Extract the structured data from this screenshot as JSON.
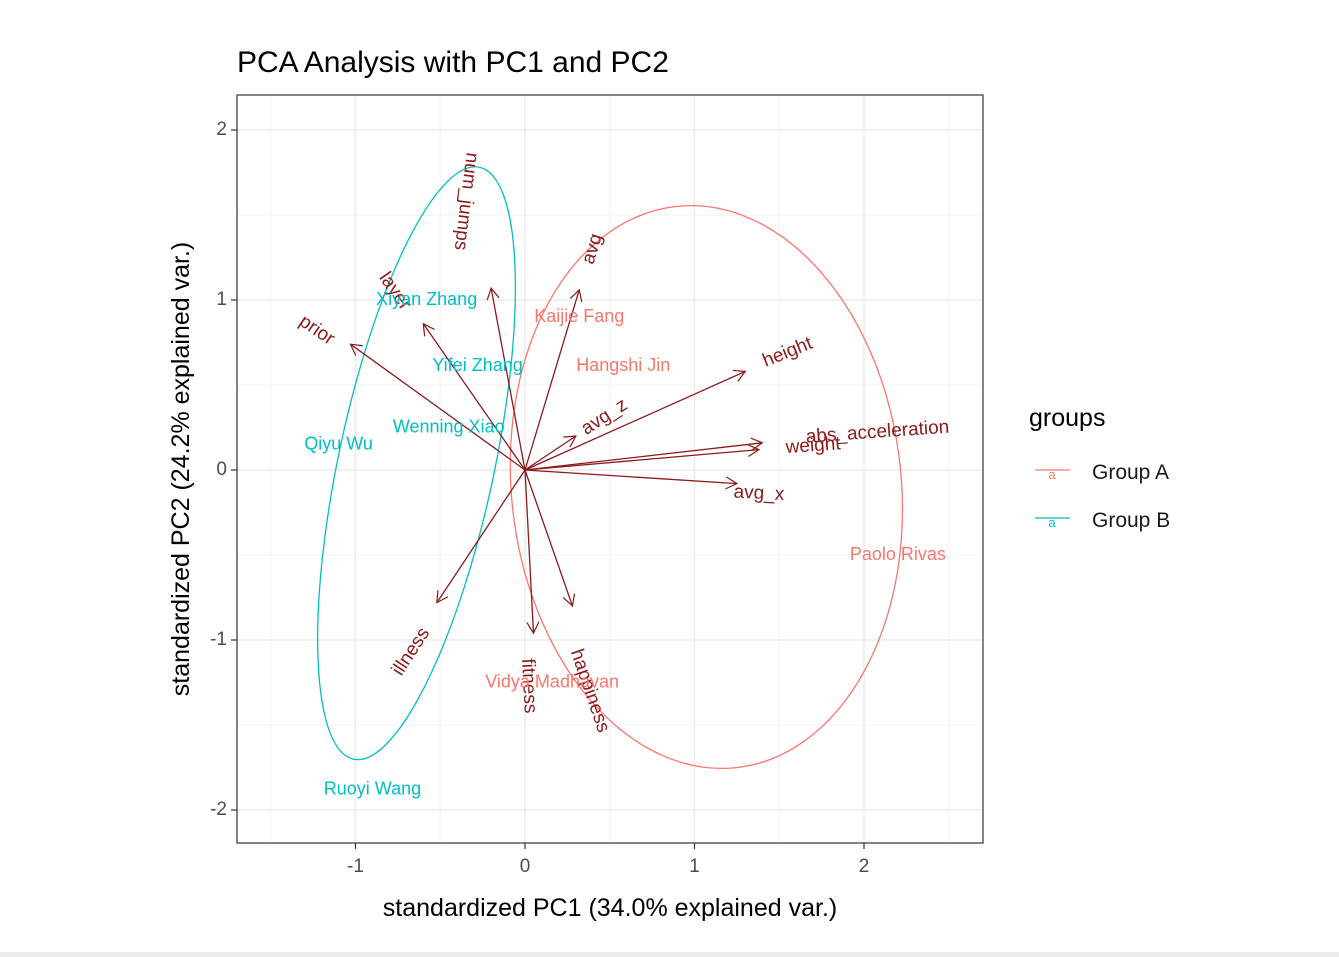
{
  "chart_data": {
    "type": "scatter",
    "subtype": "pca-biplot",
    "title": "PCA Analysis with PC1 and PC2",
    "xlabel": "standardized PC1 (34.0% explained var.)",
    "ylabel": "standardized PC2 (24.2% explained var.)",
    "xlim": [
      -1.7,
      2.7
    ],
    "ylim": [
      -2.2,
      2.2
    ],
    "x_ticks": [
      -1,
      0,
      1,
      2
    ],
    "y_ticks": [
      -2,
      -1,
      0,
      1,
      2
    ],
    "x_tick_labels": [
      "-1",
      "0",
      "1",
      "2"
    ],
    "y_tick_labels": [
      "-2",
      "-1",
      "0",
      "1",
      "2"
    ],
    "grid": true,
    "legend": {
      "title": "groups",
      "placement": "right",
      "entries": [
        {
          "label": "Group A",
          "color": "#F8766D",
          "glyph": "a"
        },
        {
          "label": "Group B",
          "color": "#00BFC4",
          "glyph": "a"
        }
      ]
    },
    "colors": {
      "arrow": "#8B1A1A",
      "group_a": "#F8766D",
      "group_b": "#00BFC4",
      "grid": "#ebebeb",
      "panel_border": "#333333"
    },
    "points": [
      {
        "label": "Xiyan Zhang",
        "group": "Group B",
        "x": -0.58,
        "y": 1.0
      },
      {
        "label": "Yifei Zhang",
        "group": "Group B",
        "x": -0.28,
        "y": 0.61
      },
      {
        "label": "Wenning Xiao",
        "group": "Group B",
        "x": -0.45,
        "y": 0.25
      },
      {
        "label": "Qiyu Wu",
        "group": "Group B",
        "x": -1.1,
        "y": 0.15
      },
      {
        "label": "Ruoyi Wang",
        "group": "Group B",
        "x": -0.9,
        "y": -1.88
      },
      {
        "label": "Kaijie Fang",
        "group": "Group A",
        "x": 0.32,
        "y": 0.9
      },
      {
        "label": "Hangshi Jin",
        "group": "Group A",
        "x": 0.58,
        "y": 0.61
      },
      {
        "label": "Paolo Rivas",
        "group": "Group A",
        "x": 2.2,
        "y": -0.5
      },
      {
        "label": "Vidya Madhavan",
        "group": "Group A",
        "x": 0.16,
        "y": -1.25
      }
    ],
    "loadings": [
      {
        "name": "num_jumps",
        "x": -0.2,
        "y": 1.07,
        "label_x": -0.35,
        "label_y": 1.58,
        "label_angle": 97
      },
      {
        "name": "avg",
        "x": 0.32,
        "y": 1.06,
        "label_x": 0.4,
        "label_y": 1.3,
        "label_angle": -73
      },
      {
        "name": "layer",
        "x": -0.6,
        "y": 0.86,
        "label_x": -0.77,
        "label_y": 1.05,
        "label_angle": 55
      },
      {
        "name": "prior",
        "x": -1.03,
        "y": 0.74,
        "label_x": -1.23,
        "label_y": 0.82,
        "label_angle": 34
      },
      {
        "name": "height",
        "x": 1.3,
        "y": 0.58,
        "label_x": 1.55,
        "label_y": 0.69,
        "label_angle": -22
      },
      {
        "name": "avg_z",
        "x": 0.3,
        "y": 0.2,
        "label_x": 0.47,
        "label_y": 0.31,
        "label_angle": -33
      },
      {
        "name": "abs_acceleration",
        "x": 1.4,
        "y": 0.16,
        "label_x": 2.08,
        "label_y": 0.22,
        "label_angle": -4
      },
      {
        "name": "weight",
        "x": 1.38,
        "y": 0.12,
        "label_x": 1.7,
        "label_y": 0.14,
        "label_angle": -4
      },
      {
        "name": "avg_x",
        "x": 1.25,
        "y": -0.08,
        "label_x": 1.38,
        "label_y": -0.14,
        "label_angle": 3
      },
      {
        "name": "illness",
        "x": -0.52,
        "y": -0.78,
        "label_x": -0.67,
        "label_y": -1.07,
        "label_angle": -57
      },
      {
        "name": "fitness",
        "x": 0.05,
        "y": -0.96,
        "label_x": 0.02,
        "label_y": -1.27,
        "label_angle": 87
      },
      {
        "name": "happiness",
        "x": 0.28,
        "y": -0.8,
        "label_x": 0.38,
        "label_y": -1.3,
        "label_angle": 71
      }
    ],
    "ellipses": [
      {
        "group": "Group A",
        "cx": 1.07,
        "cy": -0.1,
        "rx": 1.15,
        "ry": 1.66,
        "angle": -6
      },
      {
        "group": "Group B",
        "cx": -0.64,
        "cy": 0.04,
        "rx": 0.46,
        "ry": 1.78,
        "angle": 12
      }
    ]
  }
}
